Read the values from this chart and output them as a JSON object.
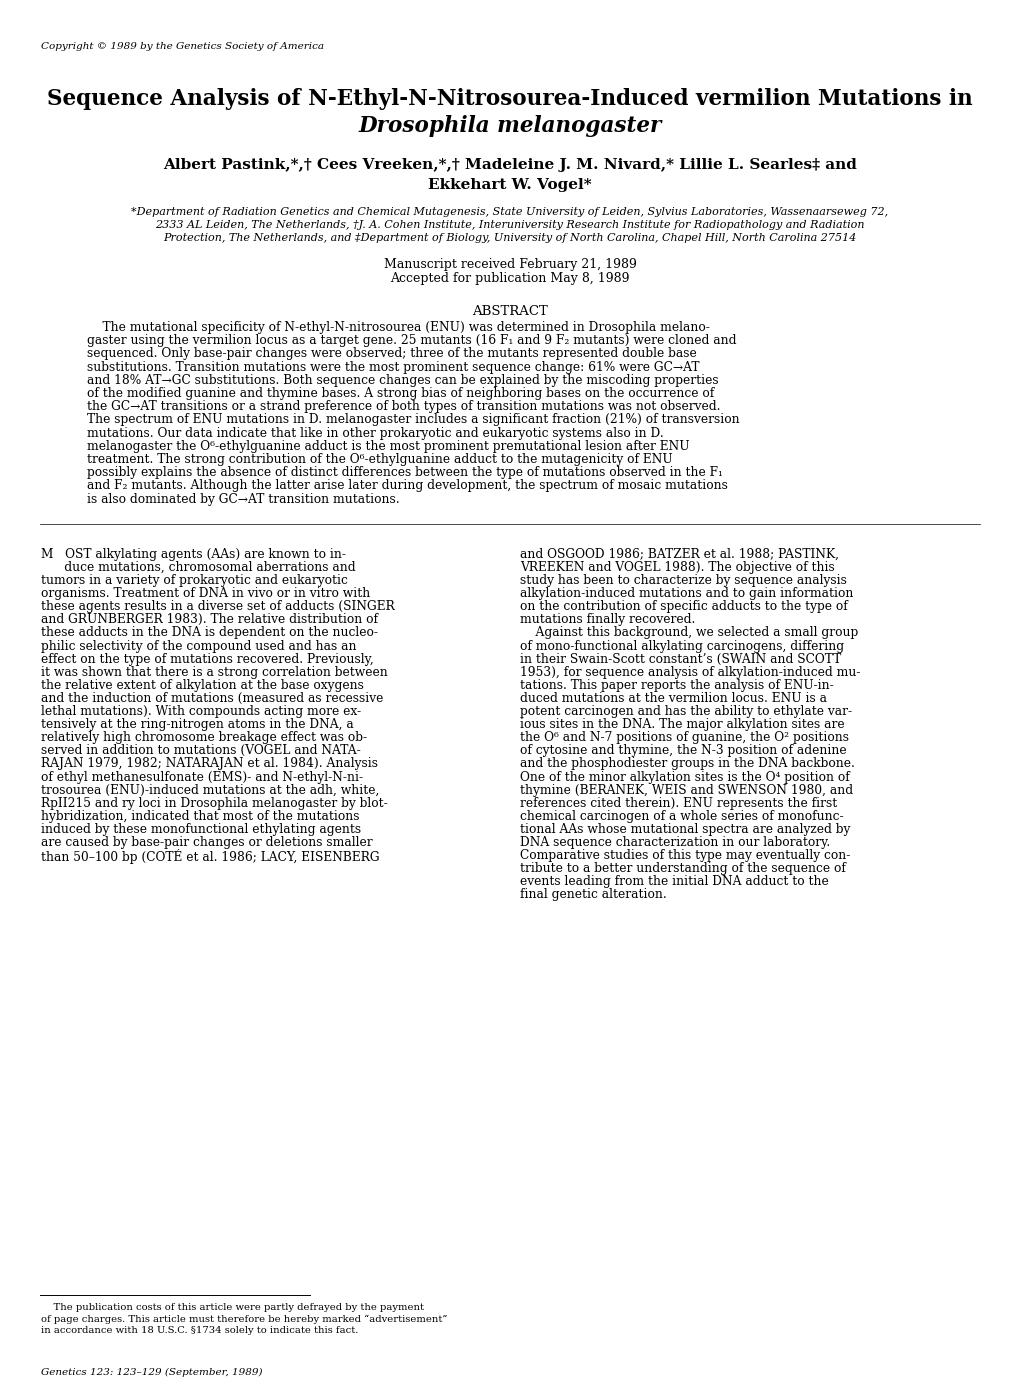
{
  "background_color": "#ffffff",
  "copyright": "Copyright © 1989 by the Genetics Society of America",
  "title_line1": "Sequence Analysis of N-Ethyl-N-Nitrosourea-Induced vermilion Mutations in",
  "title_line2": "Drosophila melanogaster",
  "authors_line1": "Albert Pastink,*,† Cees Vreeken,*,† Madeleine J. M. Nivard,* Lillie L. Searles‡ and",
  "authors_line2": "Ekkehart W. Vogel*",
  "affil_line1": "*Department of Radiation Genetics and Chemical Mutagenesis, State University of Leiden, Sylvius Laboratories, Wassenaarseweg 72,",
  "affil_line2": "2333 AL Leiden, The Netherlands, †J. A. Cohen Institute, Interuniversity Research Institute for Radiopathology and Radiation",
  "affil_line3": "Protection, The Netherlands, and ‡Department of Biology, University of North Carolina, Chapel Hill, North Carolina 27514",
  "manuscript_received": "Manuscript received February 21, 1989",
  "accepted": "Accepted for publication May 8, 1989",
  "abstract_title": "ABSTRACT",
  "abs_lines": [
    "    The mutational specificity of N-ethyl-N-nitrosourea (ENU) was determined in Drosophila melano-",
    "gaster using the vermilion locus as a target gene. 25 mutants (16 F₁ and 9 F₂ mutants) were cloned and",
    "sequenced. Only base-pair changes were observed; three of the mutants represented double base",
    "substitutions. Transition mutations were the most prominent sequence change: 61% were GC→AT",
    "and 18% AT→GC substitutions. Both sequence changes can be explained by the miscoding properties",
    "of the modified guanine and thymine bases. A strong bias of neighboring bases on the occurrence of",
    "the GC→AT transitions or a strand preference of both types of transition mutations was not observed.",
    "The spectrum of ENU mutations in D. melanogaster includes a significant fraction (21%) of transversion",
    "mutations. Our data indicate that like in other prokaryotic and eukaryotic systems also in D.",
    "melanogaster the O⁶-ethylguanine adduct is the most prominent premutational lesion after ENU",
    "treatment. The strong contribution of the O⁶-ethylguanine adduct to the mutagenicity of ENU",
    "possibly explains the absence of distinct differences between the type of mutations observed in the F₁",
    "and F₂ mutants. Although the latter arise later during development, the spectrum of mosaic mutations",
    "is also dominated by GC→AT transition mutations."
  ],
  "left_lines": [
    "M   OST alkylating agents (AAs) are known to in-",
    "      duce mutations, chromosomal aberrations and",
    "tumors in a variety of prokaryotic and eukaryotic",
    "organisms. Treatment of DNA in vivo or in vitro with",
    "these agents results in a diverse set of adducts (SINGER",
    "and GRUNBERGER 1983). The relative distribution of",
    "these adducts in the DNA is dependent on the nucleo-",
    "philic selectivity of the compound used and has an",
    "effect on the type of mutations recovered. Previously,",
    "it was shown that there is a strong correlation between",
    "the relative extent of alkylation at the base oxygens",
    "and the induction of mutations (measured as recessive",
    "lethal mutations). With compounds acting more ex-",
    "tensively at the ring-nitrogen atoms in the DNA, a",
    "relatively high chromosome breakage effect was ob-",
    "served in addition to mutations (VOGEL and NATA-",
    "RAJAN 1979, 1982; NATARAJAN et al. 1984). Analysis",
    "of ethyl methanesulfonate (EMS)- and N-ethyl-N-ni-",
    "trosourea (ENU)-induced mutations at the adh, white,",
    "RpII215 and ry loci in Drosophila melanogaster by blot-",
    "hybridization, indicated that most of the mutations",
    "induced by these monofunctional ethylating agents",
    "are caused by base-pair changes or deletions smaller",
    "than 50–100 bp (COTÉ et al. 1986; LACY, EISENBERG"
  ],
  "right_lines": [
    "and OSGOOD 1986; BATZER et al. 1988; PASTINK,",
    "VREEKEN and VOGEL 1988). The objective of this",
    "study has been to characterize by sequence analysis",
    "alkylation-induced mutations and to gain information",
    "on the contribution of specific adducts to the type of",
    "mutations finally recovered.",
    "    Against this background, we selected a small group",
    "of mono-functional alkylating carcinogens, differing",
    "in their Swain-Scott constant’s (SWAIN and SCOTT",
    "1953), for sequence analysis of alkylation-induced mu-",
    "tations. This paper reports the analysis of ENU-in-",
    "duced mutations at the vermilion locus. ENU is a",
    "potent carcinogen and has the ability to ethylate var-",
    "ious sites in the DNA. The major alkylation sites are",
    "the O⁶ and N-7 positions of guanine, the O² positions",
    "of cytosine and thymine, the N-3 position of adenine",
    "and the phosphodiester groups in the DNA backbone.",
    "One of the minor alkylation sites is the O⁴ position of",
    "thymine (BERANEK, WEIS and SWENSON 1980, and",
    "references cited therein). ENU represents the first",
    "chemical carcinogen of a whole series of monofunc-",
    "tional AAs whose mutational spectra are analyzed by",
    "DNA sequence characterization in our laboratory.",
    "Comparative studies of this type may eventually con-",
    "tribute to a better understanding of the sequence of",
    "events leading from the initial DNA adduct to the",
    "final genetic alteration."
  ],
  "footnote_lines": [
    "    The publication costs of this article were partly defrayed by the payment",
    "of page charges. This article must therefore be hereby marked “advertisement”",
    "in accordance with 18 U.S.C. §1734 solely to indicate this fact."
  ],
  "genetics_ref": "Genetics 123: 123–129 (September, 1989)"
}
